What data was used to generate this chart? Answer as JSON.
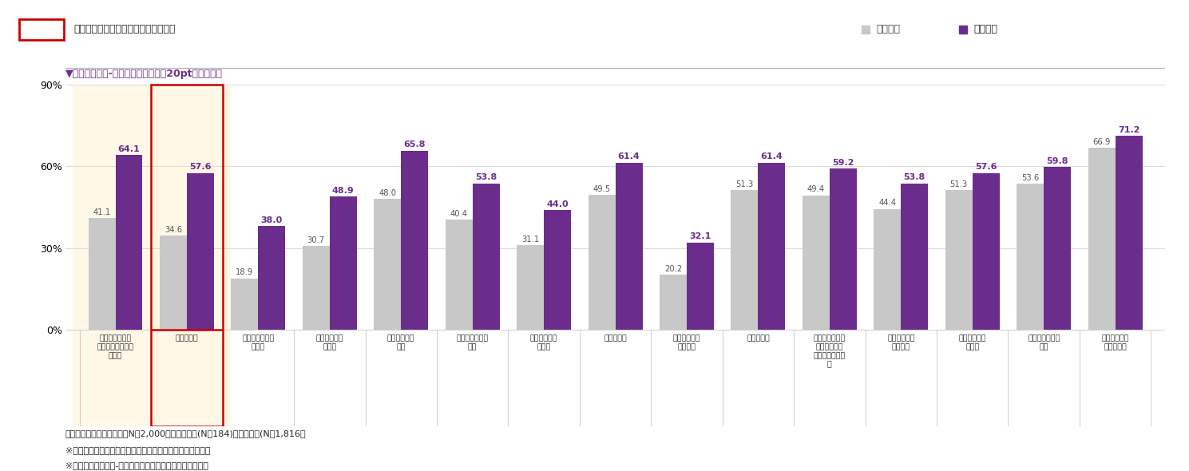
{
  "categories": [
    "遊び心やクリエ\nイティビティを感\nじたい",
    "挑戦したい",
    "自分をアピール\nしたい",
    "優越感を味わ\nいたい",
    "理想を実現し\nたい",
    "人から認められ\nたい",
    "人から尊敬さ\nれたい",
    "達成したい",
    "誰かに影響を\n与えたい",
    "成長したい",
    "夢やロマン、感\n動、興奮など\n心を動かされた\nい",
    "疎外感を感じ\nたくない",
    "好奇心を満た\nしたい",
    "人に嫌われたく\nない",
    "制限されず自\n由にしたい"
  ],
  "nashi_values": [
    41.1,
    34.6,
    18.9,
    30.7,
    48.0,
    40.4,
    31.1,
    49.5,
    20.2,
    51.3,
    49.4,
    44.4,
    51.3,
    53.6,
    66.9
  ],
  "ari_values": [
    64.1,
    57.6,
    38.0,
    48.9,
    65.8,
    53.8,
    44.0,
    61.4,
    32.1,
    61.4,
    59.2,
    53.8,
    57.6,
    59.8,
    71.2
  ],
  "highlight_indices": [
    0,
    1
  ],
  "color_nashi": "#c8c8c8",
  "color_ari": "#6b2d8b",
  "color_highlight_bg": "#fff8e7",
  "color_highlight_box": "#cc0000",
  "ylim": [
    0,
    90
  ],
  "yticks": [
    0,
    30,
    60,
    90
  ],
  "ytick_labels": [
    "0%",
    "30%",
    "60%",
    "90%"
  ],
  "legend_nashi": "体験なし",
  "legend_ari": "体験あり",
  "annotation_top": "アーリーアダプターの特徴を示す項目",
  "annotation_sub": "▼「体験あり」-「体験なし」の差が20pt以上の項目",
  "footnote1": "基数：調査対象者全体　（N＝2,000）、体験あり(N＝184)、体験なし(N＝1,816）",
  "footnote2": "※スコアは「非常にあてはまる」＋「ややあてはまる」の計",
  "footnote3": "※項目は【体験あり-体験なし】の差が大きい順に並び替え"
}
